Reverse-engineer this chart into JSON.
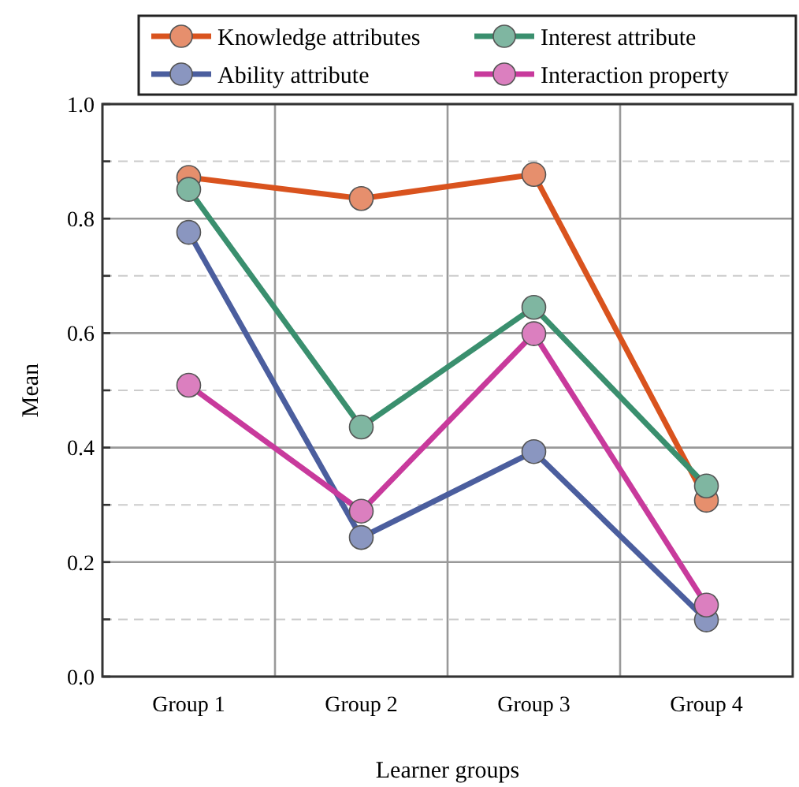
{
  "chart_data": {
    "type": "line",
    "xlabel": "Learner groups",
    "ylabel": "Mean",
    "categories": [
      "Group 1",
      "Group 2",
      "Group 3",
      "Group 4"
    ],
    "ylim": [
      0,
      1
    ],
    "yticks": [
      {
        "value": 0,
        "label": "0.0"
      },
      {
        "value": 0.1,
        "label": null
      },
      0.2,
      {
        "value": 0.3,
        "label": null
      },
      0.4,
      {
        "value": 0.5,
        "label": null
      },
      0.6,
      {
        "value": 0.7,
        "label": null
      },
      0.8,
      {
        "value": 0.9,
        "label": null
      },
      {
        "value": 1,
        "label": "1.0"
      }
    ],
    "grid": true,
    "legend": "top",
    "marker": "circle",
    "line_style": "solid",
    "series": [
      {
        "name": "Knowledge attributes",
        "color": "#d9531e",
        "values": [
          0.872,
          0.835,
          0.877,
          0.308
        ]
      },
      {
        "name": "Interest attribute",
        "color": "#3a8f6e",
        "values": [
          0.851,
          0.436,
          0.645,
          0.333
        ]
      },
      {
        "name": "Ability attribute",
        "color": "#4b5e9e",
        "values": [
          0.776,
          0.243,
          0.393,
          0.099
        ]
      },
      {
        "name": "Interaction property",
        "color": "#c83a9c",
        "values": [
          0.509,
          0.289,
          0.599,
          0.125
        ]
      }
    ]
  }
}
